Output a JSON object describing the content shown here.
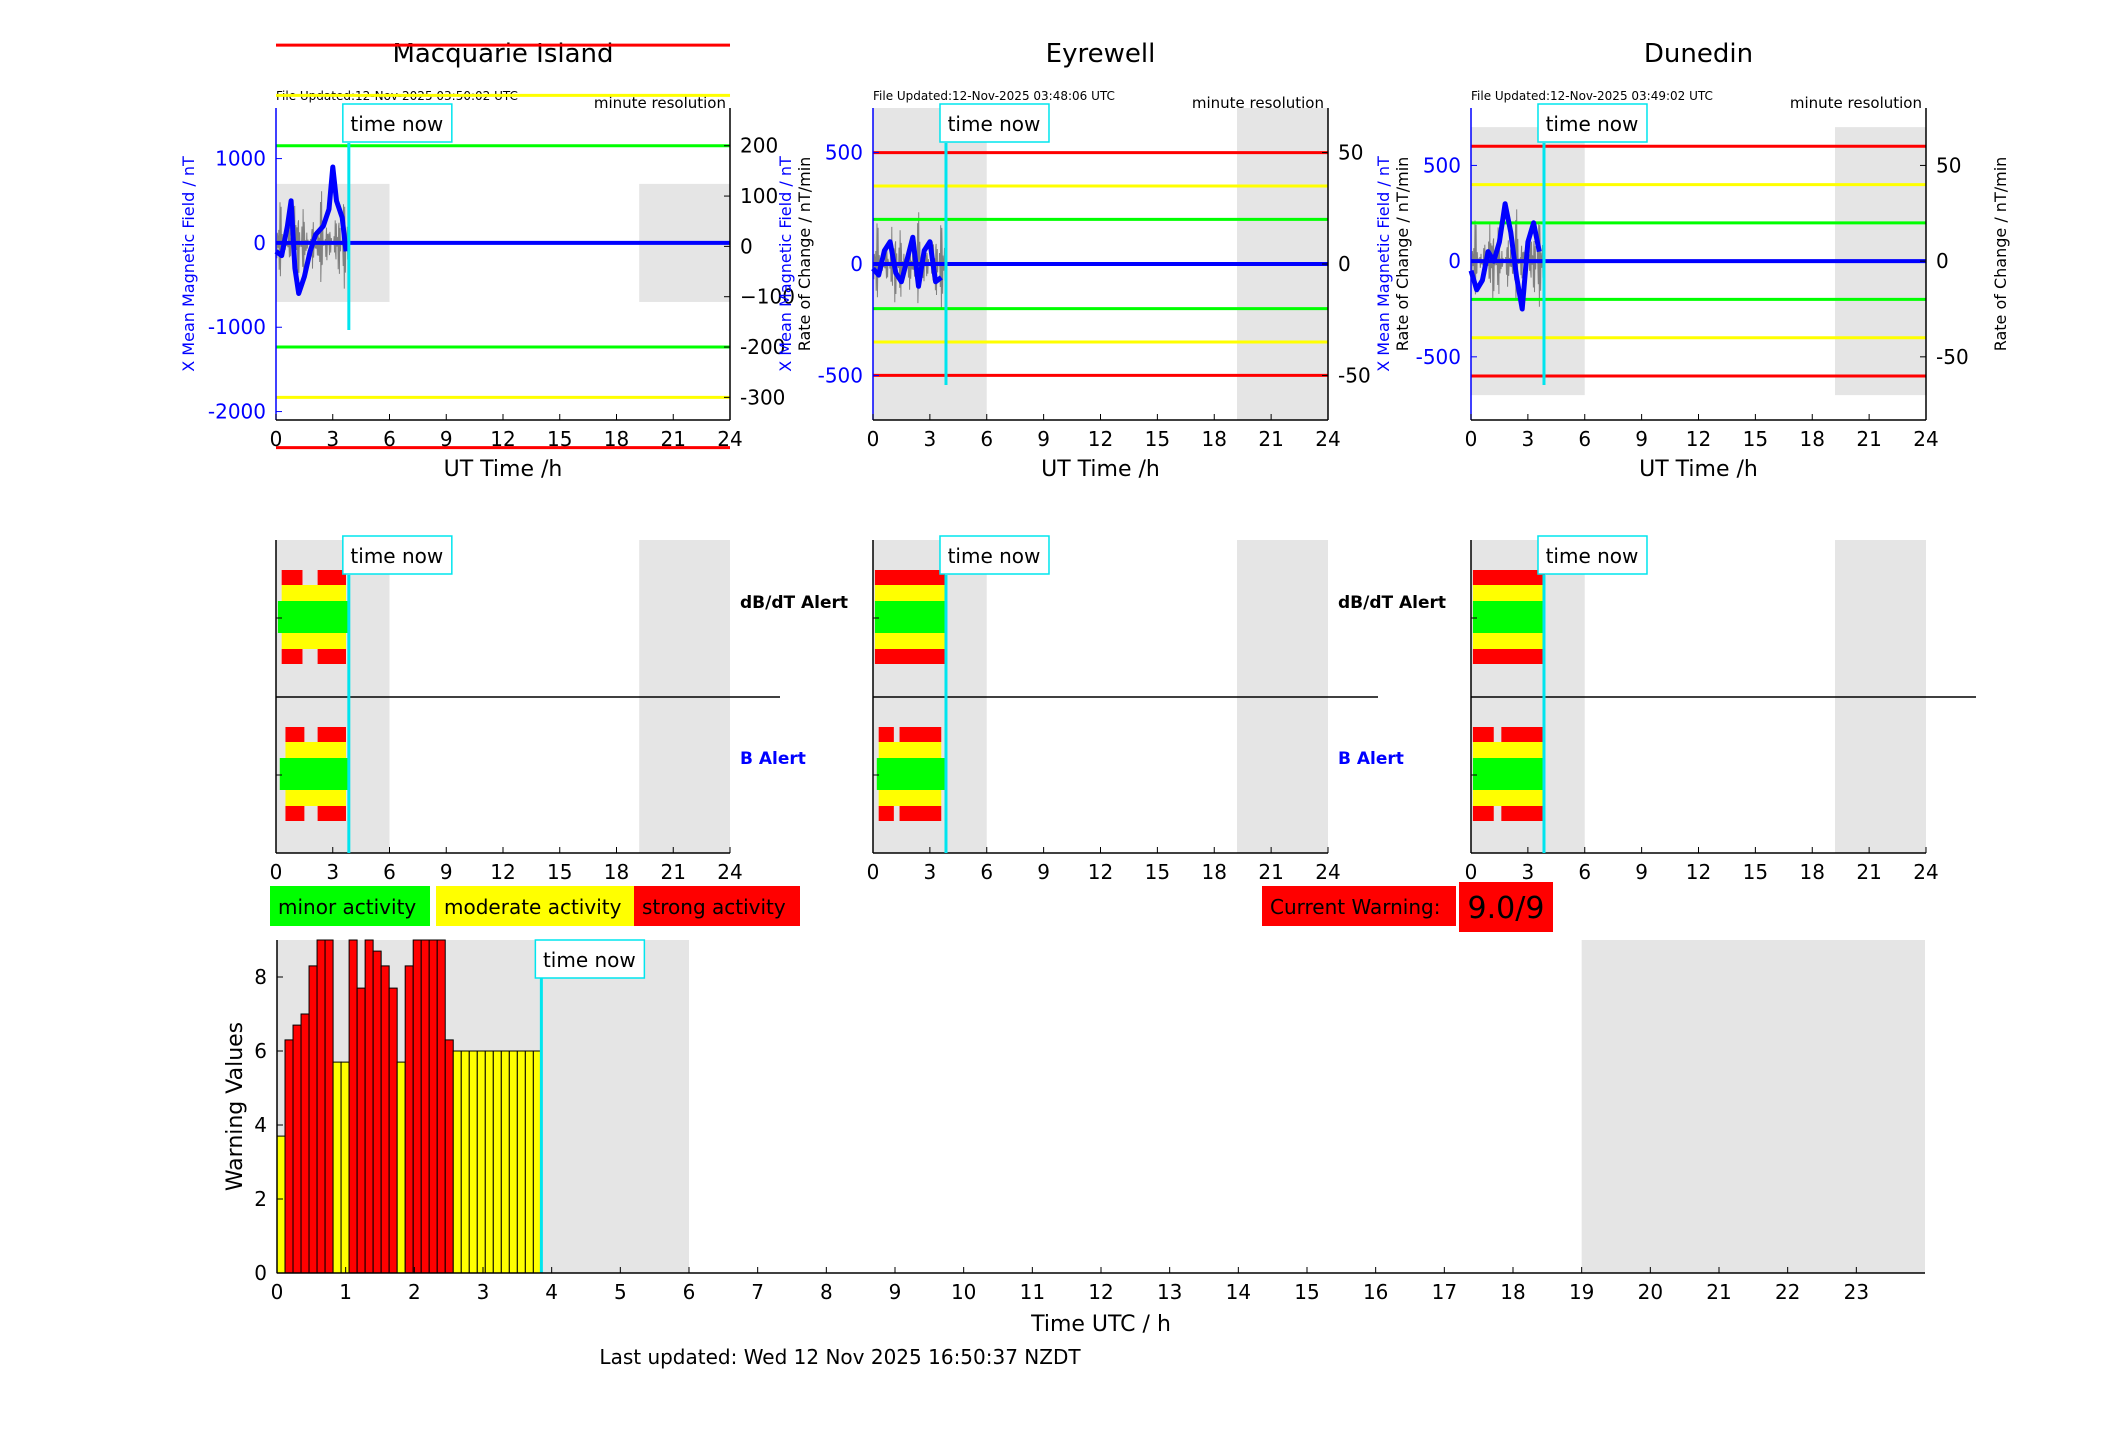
{
  "colors": {
    "field": "#0000ff",
    "rate": "#808080",
    "cyan": "#00e5ee",
    "grey": "#e5e5e5",
    "green": "#00ff00",
    "yellow": "#ffff00",
    "red": "#ff0000",
    "orange": "#ffd700"
  },
  "labels": {
    "file_updated_prefix": "File Updated:",
    "minute_resolution": "minute resolution",
    "time_now": "time now",
    "ut_time": "UT Time /h",
    "dbdt_alert": "dB/dT Alert",
    "b_alert": "B Alert",
    "left_ylabel": "X Mean Magnetic Field / nT",
    "right_ylabel": "Rate of Change / nT/min"
  },
  "legend": {
    "minor": "minor activity",
    "moderate": "moderate activity",
    "strong": "strong activity"
  },
  "current_warning": {
    "label": "Current Warning:",
    "value": "9.0/9"
  },
  "footer": {
    "last_updated": "Last updated: Wed 12 Nov 2025 16:50:37 NZDT"
  },
  "chart_data": [
    {
      "type": "line",
      "title": "Macquarie Island",
      "file_updated": "12-Nov-2025 03:50:02 UTC",
      "xlabel": "UT Time /h",
      "xlim": [
        0,
        24
      ],
      "xticks": [
        0,
        3,
        6,
        9,
        12,
        15,
        18,
        21,
        24
      ],
      "ylabel": "X Mean Magnetic Field / nT",
      "ylim": [
        -2100,
        1600
      ],
      "yticks": [
        -2000,
        -1000,
        0,
        1000
      ],
      "y2label": "Rate of Change / nT/min",
      "y2lim": [
        -345,
        275
      ],
      "y2ticks": [
        -300,
        -200,
        -100,
        0,
        100,
        200
      ],
      "y2tick_labels": [
        "-300",
        "-200",
        "−100",
        "0",
        "100",
        "200"
      ],
      "now_hour": 3.85,
      "night": [
        [
          0,
          6
        ],
        [
          19.2,
          24
        ]
      ],
      "shade_range": [
        -700,
        700
      ],
      "thresholds": [
        {
          "v": 400,
          "c": "red"
        },
        {
          "v": 300,
          "c": "yellow"
        },
        {
          "v": 200,
          "c": "green"
        },
        {
          "v": 0,
          "c": "blue"
        },
        {
          "v": -200,
          "c": "green"
        },
        {
          "v": -300,
          "c": "yellow"
        },
        {
          "v": -400,
          "c": "red"
        }
      ],
      "field_series": {
        "x": [
          0,
          0.3,
          0.6,
          0.8,
          1.0,
          1.2,
          1.5,
          1.8,
          2.1,
          2.5,
          2.8,
          3.0,
          3.2,
          3.5,
          3.7
        ],
        "y": [
          -100,
          -150,
          200,
          500,
          -300,
          -600,
          -400,
          -100,
          100,
          200,
          400,
          900,
          500,
          300,
          -100
        ]
      }
    },
    {
      "type": "line",
      "title": "Eyrewell",
      "file_updated": "12-Nov-2025 03:48:06 UTC",
      "xlabel": "UT Time /h",
      "xlim": [
        0,
        24
      ],
      "xticks": [
        0,
        3,
        6,
        9,
        12,
        15,
        18,
        21,
        24
      ],
      "ylabel": "X Mean Magnetic Field / nT",
      "ylim": [
        -700,
        700
      ],
      "yticks": [
        -500,
        0,
        500
      ],
      "y2label": "Rate of Change / nT/min",
      "y2lim": [
        -70,
        70
      ],
      "y2ticks": [
        -50,
        0,
        50
      ],
      "now_hour": 3.85,
      "night": [
        [
          0,
          6
        ],
        [
          19.2,
          24
        ]
      ],
      "shade_range": [
        -700,
        700
      ],
      "thresholds": [
        {
          "v": 50,
          "c": "red"
        },
        {
          "v": 35,
          "c": "yellow"
        },
        {
          "v": 20,
          "c": "green"
        },
        {
          "v": 0,
          "c": "blue"
        },
        {
          "v": -20,
          "c": "green"
        },
        {
          "v": -35,
          "c": "yellow"
        },
        {
          "v": -50,
          "c": "red"
        }
      ],
      "field_series": {
        "x": [
          0,
          0.3,
          0.6,
          0.9,
          1.2,
          1.5,
          1.8,
          2.1,
          2.4,
          2.7,
          3.0,
          3.3,
          3.6
        ],
        "y": [
          -20,
          -50,
          60,
          100,
          -40,
          -80,
          20,
          120,
          -100,
          60,
          100,
          -80,
          -60
        ]
      }
    },
    {
      "type": "line",
      "title": "Dunedin",
      "file_updated": "12-Nov-2025 03:49:02 UTC",
      "xlabel": "UT Time /h",
      "xlim": [
        0,
        24
      ],
      "xticks": [
        0,
        3,
        6,
        9,
        12,
        15,
        18,
        21,
        24
      ],
      "ylabel": "X Mean Magnetic Field / nT",
      "ylim": [
        -830,
        800
      ],
      "yticks": [
        -500,
        0,
        500
      ],
      "y2label": "Rate of Change / nT/min",
      "y2lim": [
        -83,
        80
      ],
      "y2ticks": [
        -50,
        0,
        50
      ],
      "now_hour": 3.85,
      "night": [
        [
          0,
          6
        ],
        [
          19.2,
          24
        ]
      ],
      "shade_range": [
        -700,
        700
      ],
      "thresholds": [
        {
          "v": 60,
          "c": "red"
        },
        {
          "v": 40,
          "c": "yellow"
        },
        {
          "v": 20,
          "c": "green"
        },
        {
          "v": 0,
          "c": "blue"
        },
        {
          "v": -20,
          "c": "green"
        },
        {
          "v": -40,
          "c": "yellow"
        },
        {
          "v": -60,
          "c": "red"
        }
      ],
      "field_series": {
        "x": [
          0,
          0.3,
          0.6,
          0.9,
          1.2,
          1.5,
          1.8,
          2.1,
          2.4,
          2.7,
          3.0,
          3.3,
          3.6
        ],
        "y": [
          -50,
          -150,
          -100,
          50,
          0,
          100,
          300,
          150,
          -80,
          -250,
          100,
          200,
          50
        ]
      }
    },
    {
      "type": "bar",
      "title": "Warning Values",
      "xlabel": "Time UTC / h",
      "ylabel": "Warning Values",
      "xlim": [
        0,
        24
      ],
      "xticks": [
        0,
        1,
        2,
        3,
        4,
        5,
        6,
        7,
        8,
        9,
        10,
        11,
        12,
        13,
        14,
        15,
        16,
        17,
        18,
        19,
        20,
        21,
        22,
        23
      ],
      "ylim": [
        0,
        9
      ],
      "yticks": [
        0,
        2,
        4,
        6,
        8
      ],
      "night": [
        [
          0,
          6
        ],
        [
          19,
          24
        ]
      ],
      "now_hour": 3.85,
      "bar_width_h": 0.1167,
      "x": [
        0,
        0.1167,
        0.2333,
        0.35,
        0.4667,
        0.5833,
        0.7,
        0.8167,
        0.9333,
        1.05,
        1.1667,
        1.2833,
        1.4,
        1.5167,
        1.6333,
        1.75,
        1.8667,
        1.9833,
        2.1,
        2.2167,
        2.3333,
        2.45,
        2.5667,
        2.6833,
        2.8,
        2.9167,
        3.0333,
        3.15,
        3.2667,
        3.3833,
        3.5,
        3.6167,
        3.7333
      ],
      "values": [
        3.7,
        6.3,
        6.7,
        7.0,
        8.3,
        9.0,
        9.0,
        5.7,
        5.7,
        9.0,
        7.7,
        9.0,
        8.7,
        8.3,
        7.7,
        5.7,
        8.3,
        9.0,
        9.0,
        9.0,
        9.0,
        6.3,
        6.0,
        6.0,
        6.0,
        6.0,
        6.0,
        6.0,
        6.0,
        6.0,
        6.0,
        6.0,
        6.0
      ],
      "levels": [
        "yellow",
        "red",
        "red",
        "red",
        "red",
        "red",
        "red",
        "yellow",
        "yellow",
        "red",
        "red",
        "red",
        "red",
        "red",
        "red",
        "yellow",
        "red",
        "red",
        "red",
        "red",
        "red",
        "red",
        "yellow",
        "yellow",
        "yellow",
        "yellow",
        "yellow",
        "yellow",
        "yellow",
        "yellow",
        "yellow",
        "yellow",
        "yellow"
      ]
    }
  ],
  "alerts": [
    {
      "dbdt": [
        {
          "c": "red",
          "from": 0.3,
          "to": 3.7,
          "gap": [
            1.4,
            2.2
          ]
        },
        {
          "c": "yellow",
          "from": 0.3,
          "to": 3.7
        },
        {
          "c": "green",
          "from": 0.1,
          "to": 3.9
        }
      ],
      "b": [
        {
          "c": "red",
          "from": 0.5,
          "to": 3.7,
          "gap": [
            1.5,
            2.2
          ]
        },
        {
          "c": "yellow",
          "from": 0.5,
          "to": 3.7
        },
        {
          "c": "green",
          "from": 0.2,
          "to": 3.9
        }
      ]
    },
    {
      "dbdt": [
        {
          "c": "red",
          "from": 0.1,
          "to": 3.8,
          "gap": [
            3.9,
            3.9
          ]
        },
        {
          "c": "yellow",
          "from": 0.1,
          "to": 3.8
        },
        {
          "c": "green",
          "from": 0.1,
          "to": 3.8
        }
      ],
      "b": [
        {
          "c": "red",
          "from": 0.3,
          "to": 3.6,
          "gap": [
            1.1,
            1.4
          ]
        },
        {
          "c": "yellow",
          "from": 0.3,
          "to": 3.6
        },
        {
          "c": "green",
          "from": 0.2,
          "to": 3.9
        }
      ]
    },
    {
      "dbdt": [
        {
          "c": "red",
          "from": 0.1,
          "to": 3.9,
          "gap": [
            4,
            4
          ]
        },
        {
          "c": "yellow",
          "from": 0.1,
          "to": 3.9
        },
        {
          "c": "green",
          "from": 0.1,
          "to": 3.9
        }
      ],
      "b": [
        {
          "c": "red",
          "from": 0.1,
          "to": 3.9,
          "gap": [
            1.2,
            1.6
          ]
        },
        {
          "c": "yellow",
          "from": 0.1,
          "to": 3.9
        },
        {
          "c": "green",
          "from": 0.1,
          "to": 3.9
        }
      ]
    }
  ]
}
